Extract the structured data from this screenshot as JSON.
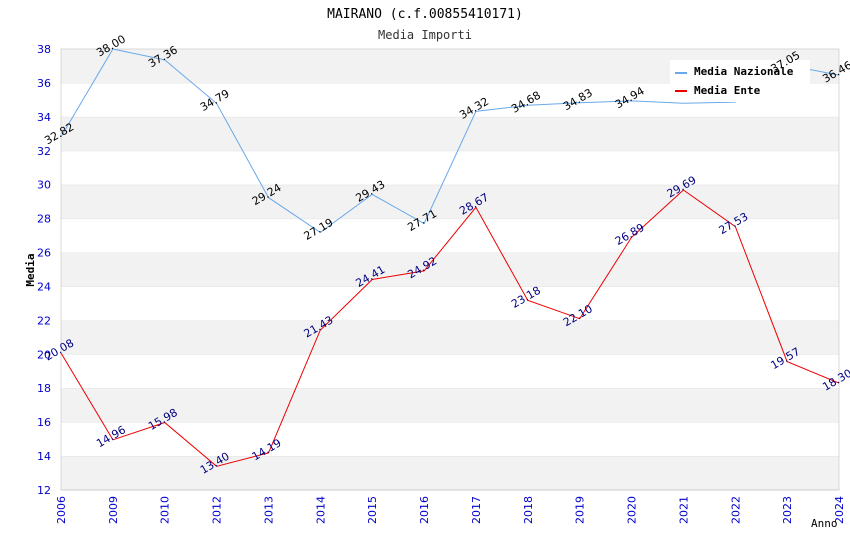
{
  "chart_data": {
    "type": "line",
    "title": "MAIRANO (c.f.00855410171)",
    "subtitle": "Media Importi",
    "xlabel": "Anno",
    "ylabel": "Media",
    "ylim": [
      12,
      38
    ],
    "yticks": [
      12,
      14,
      16,
      18,
      20,
      22,
      24,
      26,
      28,
      30,
      32,
      34,
      36,
      38
    ],
    "categories": [
      "2006",
      "2009",
      "2010",
      "2012",
      "2013",
      "2014",
      "2015",
      "2016",
      "2017",
      "2018",
      "2019",
      "2020",
      "2021",
      "2022",
      "2023",
      "2024"
    ],
    "grid": true,
    "legend_position": "top-right",
    "series": [
      {
        "name": "Media Nazionale",
        "color": "#6aa9e9",
        "values": [
          32.82,
          38.0,
          37.36,
          34.79,
          29.24,
          27.19,
          29.43,
          27.71,
          34.32,
          34.68,
          34.83,
          34.94,
          34.8,
          34.87,
          37.05,
          36.46
        ],
        "labels": [
          "32.82",
          "38.00",
          "37.36",
          "34.79",
          "29.24",
          "27.19",
          "29.43",
          "27.71",
          "34.32",
          "34.68",
          "34.83",
          "34.94",
          "",
          "",
          "37.05",
          "36.46"
        ]
      },
      {
        "name": "Media Ente",
        "color": "#ee0000",
        "values": [
          20.08,
          14.96,
          15.98,
          13.4,
          14.19,
          21.43,
          24.41,
          24.92,
          28.67,
          23.18,
          22.1,
          26.89,
          29.69,
          27.53,
          19.57,
          18.3
        ],
        "labels": [
          "20.08",
          "14.96",
          "15.98",
          "13.40",
          "14.19",
          "21.43",
          "24.41",
          "24.92",
          "28.67",
          "23.18",
          "22.10",
          "26.89",
          "29.69",
          "27.53",
          "19.57",
          "18.30"
        ]
      }
    ]
  }
}
